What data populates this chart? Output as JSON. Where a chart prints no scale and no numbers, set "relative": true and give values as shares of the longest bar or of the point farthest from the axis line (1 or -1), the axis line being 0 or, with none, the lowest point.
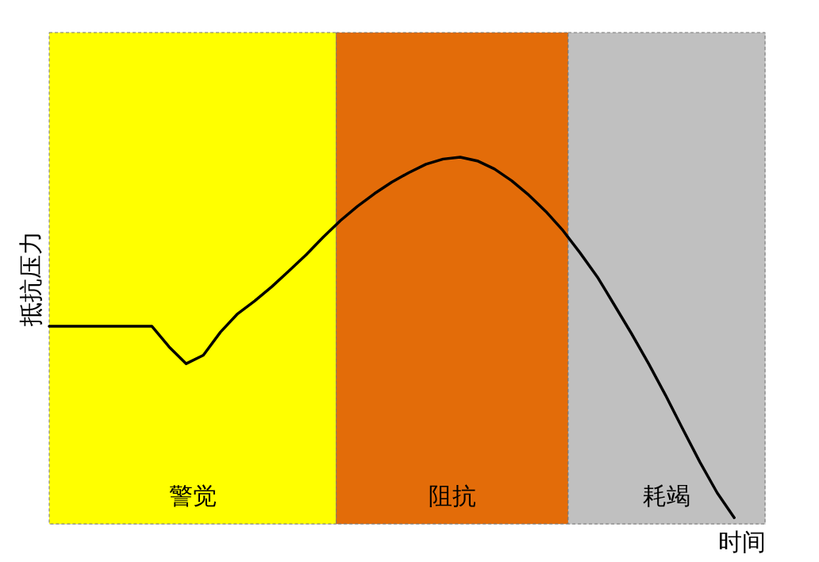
{
  "chart_data": {
    "type": "line",
    "relative": true,
    "xlabel": "时间",
    "ylabel": "抵抗压力",
    "tick_labels": false,
    "grid": false,
    "marker": "none",
    "line_style": "solid",
    "categories": [
      null,
      null,
      null,
      null,
      null,
      null,
      null,
      null,
      null,
      null,
      null,
      null,
      null,
      null,
      null,
      null,
      null,
      null,
      null,
      null,
      null,
      null,
      null,
      null,
      null,
      null,
      null,
      null,
      null,
      null,
      null,
      null,
      null,
      null,
      null,
      null,
      null,
      null,
      null,
      null,
      null
    ],
    "series": [
      {
        "color": "#000000",
        "values": [
          0.539,
          0.539,
          0.539,
          0.539,
          0.539,
          0.539,
          0.539,
          0.483,
          0.437,
          0.46,
          0.523,
          0.573,
          0.608,
          0.647,
          0.69,
          0.734,
          0.782,
          0.827,
          0.866,
          0.901,
          0.932,
          0.958,
          0.981,
          0.995,
          1,
          0.99,
          0.968,
          0.936,
          0.897,
          0.852,
          0.8,
          0.739,
          0.674,
          0.597,
          0.519,
          0.437,
          0.35,
          0.258,
          0.168,
          0.085,
          0.017
        ]
      }
    ],
    "annotations": [
      "警觉",
      "阻抗",
      "耗竭"
    ]
  }
}
